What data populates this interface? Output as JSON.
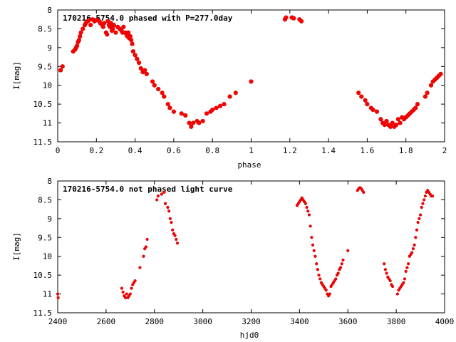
{
  "chart_data": [
    {
      "type": "scatter",
      "title": "170216-5754.0 phased with P=277.0day",
      "xlabel": "phase",
      "ylabel": "I[mag]",
      "xlim": [
        0,
        2
      ],
      "ylim": [
        11.5,
        8
      ],
      "y_inverted": true,
      "xticks": [
        0,
        0.2,
        0.4,
        0.6,
        0.8,
        1,
        1.2,
        1.4,
        1.6,
        1.8,
        2
      ],
      "xtick_labels": [
        "0",
        "0.2",
        "0.4",
        "0.6",
        "0.8",
        "1",
        "1.2",
        "1.4",
        "1.6",
        "1.8",
        "2"
      ],
      "yticks": [
        8,
        8.5,
        9,
        9.5,
        10,
        10.5,
        11,
        11.5
      ],
      "ytick_labels": [
        "8",
        "8.5",
        "9",
        "9.5",
        "10",
        "10.5",
        "11",
        "11.5"
      ],
      "grid": false,
      "marker_color": "#ff0000",
      "marker_size": 2.8,
      "series": [
        {
          "x": [
            0.015,
            0.025,
            0.08,
            0.09,
            0.095,
            0.1,
            0.105,
            0.11,
            0.115,
            0.12,
            0.13,
            0.14,
            0.145,
            0.155,
            0.16,
            0.17,
            0.18,
            0.19,
            0.2,
            0.205,
            0.215,
            0.22,
            0.23,
            0.235,
            0.24,
            0.25,
            0.255,
            0.26,
            0.265,
            0.27,
            0.275,
            0.28,
            0.285,
            0.29,
            0.3,
            0.31,
            0.32,
            0.33,
            0.335,
            0.34,
            0.35,
            0.355,
            0.36,
            0.365,
            0.37,
            0.375,
            0.38,
            0.385,
            0.39,
            0.4,
            0.41,
            0.42,
            0.43,
            0.44,
            0.45,
            0.46,
            0.49,
            0.5,
            0.52,
            0.54,
            0.55,
            0.57,
            0.58,
            0.6,
            0.64,
            0.66,
            0.68,
            0.69,
            0.7,
            0.72,
            0.73,
            0.75,
            0.77,
            0.79,
            0.8,
            0.82,
            0.84,
            0.86,
            0.89,
            0.92,
            1.0,
            1.175,
            1.18,
            1.21,
            1.22,
            1.25,
            1.26,
            1.555,
            1.57,
            1.59,
            1.6,
            1.62,
            1.63,
            1.65,
            1.67,
            1.68,
            1.69,
            1.7,
            1.71,
            1.72,
            1.73,
            1.74,
            1.75,
            1.76,
            1.77,
            1.78,
            1.79,
            1.8,
            1.81,
            1.82,
            1.83,
            1.84,
            1.85,
            1.86,
            1.9,
            1.91,
            1.93,
            1.94,
            1.95,
            1.96,
            1.97,
            1.98
          ],
          "y": [
            9.6,
            9.5,
            9.1,
            9.05,
            9.0,
            8.95,
            8.85,
            8.8,
            8.7,
            8.6,
            8.5,
            8.4,
            8.35,
            8.3,
            8.28,
            8.4,
            8.25,
            8.3,
            8.27,
            8.26,
            8.3,
            8.35,
            8.4,
            8.45,
            8.35,
            8.6,
            8.65,
            8.3,
            8.4,
            8.45,
            8.35,
            8.55,
            8.5,
            8.4,
            8.6,
            8.45,
            8.5,
            8.55,
            8.6,
            8.45,
            8.6,
            8.65,
            8.7,
            8.6,
            8.75,
            8.7,
            8.8,
            8.9,
            9.1,
            9.2,
            9.3,
            9.4,
            9.55,
            9.65,
            9.6,
            9.7,
            9.9,
            10.0,
            10.1,
            10.2,
            10.3,
            10.5,
            10.6,
            10.7,
            10.75,
            10.8,
            11.0,
            11.1,
            11.0,
            10.95,
            11.0,
            10.95,
            10.75,
            10.7,
            10.65,
            10.6,
            10.55,
            10.5,
            10.3,
            10.2,
            9.9,
            8.25,
            8.2,
            8.2,
            8.22,
            8.25,
            8.3,
            10.2,
            10.3,
            10.4,
            10.5,
            10.6,
            10.65,
            10.7,
            10.9,
            11.0,
            11.05,
            10.95,
            11.05,
            11.1,
            11.0,
            11.1,
            11.05,
            10.9,
            11.0,
            10.85,
            10.9,
            10.85,
            10.8,
            10.75,
            10.7,
            10.65,
            10.6,
            10.5,
            10.3,
            10.2,
            10.0,
            9.9,
            9.85,
            9.8,
            9.75,
            9.7
          ]
        }
      ]
    },
    {
      "type": "scatter",
      "title": "170216-5754.0 not phased light curve",
      "xlabel": "hjd0",
      "ylabel": "I[mag]",
      "xlim": [
        2400,
        4000
      ],
      "ylim": [
        11.5,
        8
      ],
      "y_inverted": true,
      "xticks": [
        2400,
        2600,
        2800,
        3000,
        3200,
        3400,
        3600,
        3800,
        4000
      ],
      "xtick_labels": [
        "2400",
        "2600",
        "2800",
        "3000",
        "3200",
        "3400",
        "3600",
        "3800",
        "4000"
      ],
      "yticks": [
        8,
        8.5,
        9,
        9.5,
        10,
        10.5,
        11,
        11.5
      ],
      "ytick_labels": [
        "8",
        "8.5",
        "9",
        "9.5",
        "10",
        "10.5",
        "11",
        "11.5"
      ],
      "grid": false,
      "marker_color": "#ff0000",
      "marker_size": 1.8,
      "series": [
        {
          "x": [
            2400,
            2402,
            2665,
            2670,
            2675,
            2680,
            2685,
            2690,
            2695,
            2700,
            2705,
            2710,
            2715,
            2720,
            2740,
            2755,
            2760,
            2765,
            2770,
            2810,
            2815,
            2830,
            2840,
            2845,
            2855,
            2860,
            2865,
            2870,
            2875,
            2880,
            2885,
            2890,
            2895,
            3390,
            3395,
            3400,
            3405,
            3410,
            3415,
            3420,
            3425,
            3430,
            3435,
            3440,
            3445,
            3450,
            3455,
            3460,
            3465,
            3470,
            3475,
            3480,
            3485,
            3490,
            3495,
            3500,
            3505,
            3510,
            3515,
            3520,
            3525,
            3530,
            3535,
            3540,
            3545,
            3550,
            3555,
            3560,
            3565,
            3570,
            3575,
            3580,
            3600,
            3640,
            3645,
            3650,
            3655,
            3660,
            3665,
            3750,
            3755,
            3760,
            3765,
            3770,
            3775,
            3780,
            3785,
            3805,
            3810,
            3815,
            3820,
            3825,
            3830,
            3835,
            3840,
            3845,
            3850,
            3855,
            3860,
            3865,
            3870,
            3875,
            3880,
            3885,
            3890,
            3895,
            3900,
            3905,
            3910,
            3915,
            3920,
            3925,
            3930,
            3935,
            3940,
            3945,
            3950
          ],
          "y": [
            11.0,
            11.1,
            10.85,
            10.95,
            11.05,
            11.1,
            11.0,
            11.1,
            11.05,
            11.0,
            10.85,
            10.75,
            10.7,
            10.65,
            10.3,
            10.0,
            9.8,
            9.75,
            9.55,
            8.5,
            8.4,
            8.35,
            8.3,
            8.6,
            8.7,
            8.8,
            9.0,
            9.1,
            9.3,
            9.4,
            9.45,
            9.55,
            9.65,
            8.65,
            8.6,
            8.55,
            8.5,
            8.45,
            8.5,
            8.55,
            8.6,
            8.7,
            8.8,
            8.9,
            9.2,
            9.5,
            9.7,
            9.85,
            10.0,
            10.2,
            10.35,
            10.5,
            10.6,
            10.7,
            10.75,
            10.8,
            10.85,
            10.9,
            11.0,
            11.05,
            11.0,
            10.8,
            10.75,
            10.7,
            10.65,
            10.6,
            10.5,
            10.45,
            10.35,
            10.3,
            10.2,
            10.1,
            9.85,
            8.25,
            8.2,
            8.18,
            8.2,
            8.25,
            8.3,
            10.2,
            10.35,
            10.45,
            10.55,
            10.6,
            10.65,
            10.75,
            10.8,
            11.0,
            10.9,
            10.85,
            10.8,
            10.75,
            10.7,
            10.6,
            10.4,
            10.3,
            10.2,
            10.0,
            9.95,
            9.9,
            9.8,
            9.7,
            9.5,
            9.3,
            9.1,
            9.0,
            8.9,
            8.7,
            8.6,
            8.5,
            8.4,
            8.3,
            8.25,
            8.3,
            8.35,
            8.4,
            8.4
          ]
        }
      ]
    }
  ]
}
